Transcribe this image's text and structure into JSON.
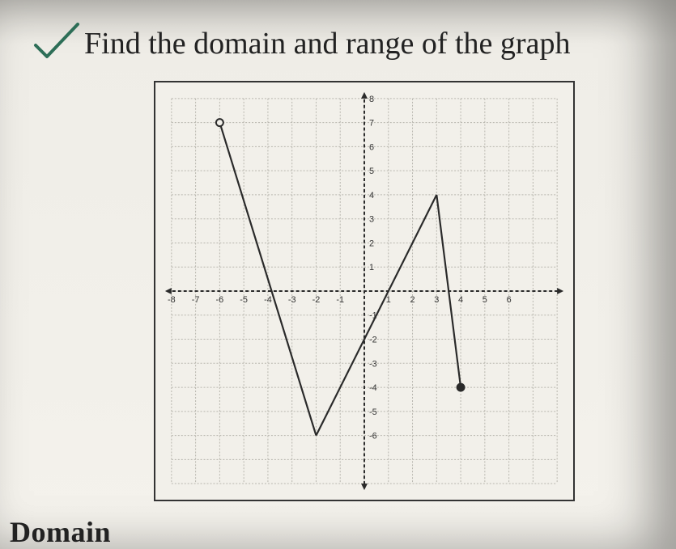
{
  "prompt_text": "Find the domain and range of the graph",
  "bottom_word_partial": "Domain",
  "chart": {
    "type": "line",
    "xlim": [
      -8,
      8
    ],
    "ylim": [
      -8,
      8
    ],
    "tick_step": 1,
    "x_tick_labels": [
      "-8",
      "-7",
      "-6",
      "-5",
      "-4",
      "-3",
      "-2",
      "-1",
      "",
      "1",
      "2",
      "3",
      "4",
      "5",
      "6"
    ],
    "y_tick_labels_pos": [
      "1",
      "2",
      "3",
      "4",
      "5",
      "6",
      "7",
      "8"
    ],
    "y_tick_labels_neg": [
      "-1",
      "-2",
      "-3",
      "-4",
      "-5",
      "-6"
    ],
    "grid_color": "#b7b5ad",
    "subgrid_color": "#cfcdc5",
    "axis_color": "#2a2a2a",
    "background_color": "#f2f0ea",
    "line_color": "#2a2a2a",
    "line_width": 2.2,
    "segments": [
      {
        "points": [
          [
            -6,
            7
          ],
          [
            -2,
            -6
          ]
        ],
        "start": "open",
        "end": "none"
      },
      {
        "points": [
          [
            -2,
            -6
          ],
          [
            3,
            4
          ]
        ],
        "start": "none",
        "end": "none"
      },
      {
        "points": [
          [
            3,
            4
          ],
          [
            4,
            -4
          ]
        ],
        "start": "none",
        "end": "closed"
      }
    ],
    "endpoint_radius": 4.5
  },
  "checkmark": {
    "color": "#2d6e57",
    "stroke_width": 4
  }
}
